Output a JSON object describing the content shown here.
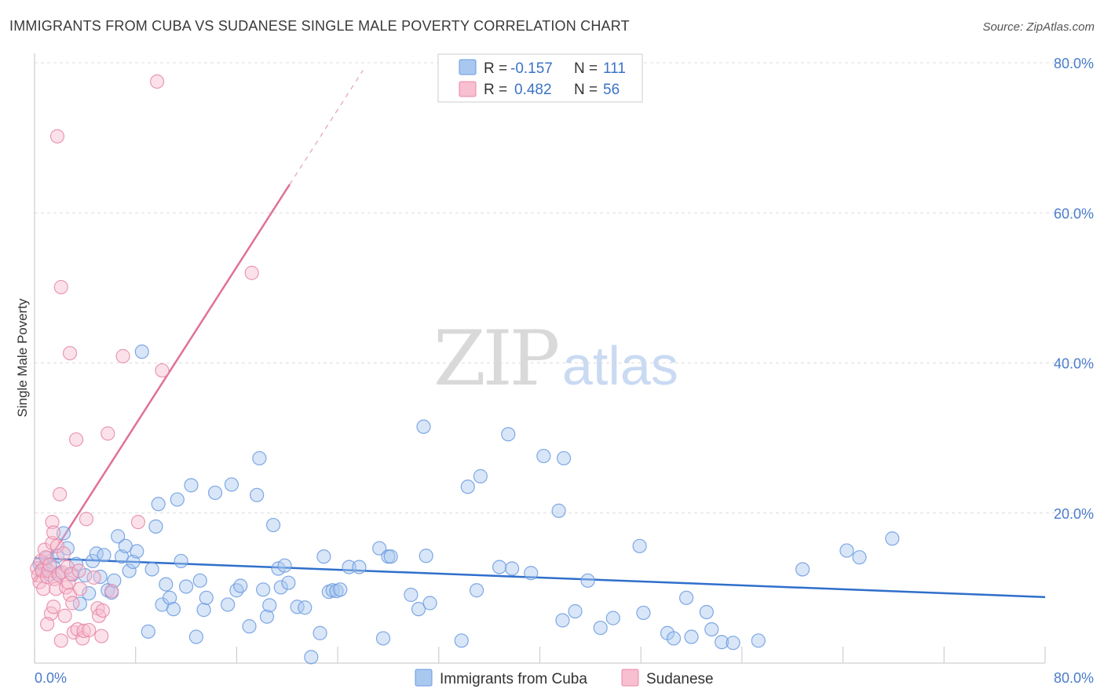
{
  "title": "IMMIGRANTS FROM CUBA VS SUDANESE SINGLE MALE POVERTY CORRELATION CHART",
  "source": "Source: ZipAtlas.com",
  "watermark": {
    "zip": "ZIP",
    "atlas": "atlas"
  },
  "legend": {
    "rows": [
      {
        "r_label": "R =",
        "r_value": "-0.157",
        "n_label": "N =",
        "n_value": "111",
        "color": "#a9c8f0",
        "stroke": "#6b9ae0"
      },
      {
        "r_label": "R =",
        "r_value": "0.482",
        "n_label": "N =",
        "n_value": "56",
        "color": "#f7bfd0",
        "stroke": "#e887a6"
      }
    ]
  },
  "chart_data": {
    "type": "scatter",
    "title": "IMMIGRANTS FROM CUBA VS SUDANESE SINGLE MALE POVERTY CORRELATION CHART",
    "xlabel": "",
    "ylabel": "Single Male Poverty",
    "xlim": [
      0,
      80
    ],
    "ylim": [
      0,
      80
    ],
    "x_tick_labels": [
      {
        "value": 0,
        "label": "0.0%"
      },
      {
        "value": 80,
        "label": "80.0%"
      }
    ],
    "y_tick_labels": [
      {
        "value": 20,
        "label": "20.0%"
      },
      {
        "value": 40,
        "label": "40.0%"
      },
      {
        "value": 60,
        "label": "60.0%"
      },
      {
        "value": 80,
        "label": "80.0%"
      }
    ],
    "grid": true,
    "legend_position": "top-center",
    "series": [
      {
        "name": "Immigrants from Cuba",
        "color": "#6b9ae0",
        "fill": "#a9c8f0",
        "trend": {
          "x": [
            0,
            80
          ],
          "y": [
            14.0,
            8.8
          ],
          "color": "#2f6fcb"
        },
        "points": [
          [
            0.4,
            13.2
          ],
          [
            0.6,
            12.5
          ],
          [
            0.8,
            12.9
          ],
          [
            1.0,
            14.0
          ],
          [
            1.2,
            11.8
          ],
          [
            1.5,
            12.8
          ],
          [
            1.8,
            14.3
          ],
          [
            2.0,
            12.0
          ],
          [
            2.3,
            17.3
          ],
          [
            2.6,
            15.3
          ],
          [
            3.0,
            11.8
          ],
          [
            3.3,
            13.2
          ],
          [
            3.6,
            7.9
          ],
          [
            4.0,
            11.7
          ],
          [
            4.3,
            9.3
          ],
          [
            4.6,
            13.6
          ],
          [
            4.9,
            14.6
          ],
          [
            5.2,
            11.5
          ],
          [
            5.5,
            14.4
          ],
          [
            5.8,
            9.7
          ],
          [
            6.1,
            9.4
          ],
          [
            6.3,
            11.0
          ],
          [
            6.6,
            16.9
          ],
          [
            6.9,
            14.2
          ],
          [
            7.2,
            15.6
          ],
          [
            7.5,
            12.3
          ],
          [
            7.8,
            13.5
          ],
          [
            8.1,
            14.9
          ],
          [
            8.5,
            41.5
          ],
          [
            9.0,
            4.2
          ],
          [
            9.3,
            12.5
          ],
          [
            9.6,
            18.2
          ],
          [
            9.8,
            21.2
          ],
          [
            10.1,
            7.8
          ],
          [
            10.4,
            10.5
          ],
          [
            10.7,
            8.7
          ],
          [
            11.0,
            7.2
          ],
          [
            11.3,
            21.8
          ],
          [
            11.6,
            13.6
          ],
          [
            12.0,
            10.2
          ],
          [
            12.4,
            23.7
          ],
          [
            12.8,
            3.5
          ],
          [
            13.1,
            11.0
          ],
          [
            13.4,
            7.1
          ],
          [
            13.6,
            8.7
          ],
          [
            14.3,
            22.7
          ],
          [
            15.3,
            7.8
          ],
          [
            15.6,
            23.8
          ],
          [
            16.0,
            9.7
          ],
          [
            16.3,
            10.3
          ],
          [
            17.0,
            4.9
          ],
          [
            17.6,
            22.4
          ],
          [
            17.8,
            27.3
          ],
          [
            18.1,
            9.8
          ],
          [
            18.4,
            6.2
          ],
          [
            18.6,
            7.7
          ],
          [
            18.9,
            18.4
          ],
          [
            19.3,
            12.6
          ],
          [
            19.5,
            10.1
          ],
          [
            19.8,
            13.0
          ],
          [
            20.1,
            10.7
          ],
          [
            20.8,
            7.5
          ],
          [
            21.4,
            7.4
          ],
          [
            21.9,
            0.8
          ],
          [
            22.6,
            4.0
          ],
          [
            22.9,
            14.2
          ],
          [
            23.3,
            9.5
          ],
          [
            23.6,
            9.7
          ],
          [
            23.9,
            9.6
          ],
          [
            24.2,
            9.8
          ],
          [
            24.9,
            12.8
          ],
          [
            25.7,
            12.8
          ],
          [
            27.3,
            15.3
          ],
          [
            27.6,
            3.3
          ],
          [
            28.0,
            14.2
          ],
          [
            28.2,
            14.2
          ],
          [
            29.8,
            9.1
          ],
          [
            30.4,
            7.2
          ],
          [
            30.8,
            31.5
          ],
          [
            31.0,
            14.3
          ],
          [
            31.3,
            8.0
          ],
          [
            33.8,
            3.0
          ],
          [
            34.3,
            23.5
          ],
          [
            35.0,
            9.7
          ],
          [
            35.3,
            24.9
          ],
          [
            36.8,
            12.8
          ],
          [
            37.5,
            30.5
          ],
          [
            37.8,
            12.6
          ],
          [
            39.3,
            12.0
          ],
          [
            40.3,
            27.6
          ],
          [
            41.5,
            20.3
          ],
          [
            41.8,
            5.7
          ],
          [
            41.9,
            27.3
          ],
          [
            42.8,
            6.9
          ],
          [
            43.8,
            11.0
          ],
          [
            44.8,
            4.7
          ],
          [
            45.8,
            6.0
          ],
          [
            47.9,
            15.6
          ],
          [
            48.2,
            6.7
          ],
          [
            50.1,
            4.0
          ],
          [
            50.6,
            3.3
          ],
          [
            51.6,
            8.7
          ],
          [
            52.0,
            3.5
          ],
          [
            53.2,
            6.8
          ],
          [
            53.6,
            4.5
          ],
          [
            54.4,
            2.8
          ],
          [
            55.3,
            2.7
          ],
          [
            57.3,
            3.0
          ],
          [
            60.8,
            12.5
          ],
          [
            64.3,
            15.0
          ],
          [
            65.3,
            14.1
          ],
          [
            67.9,
            16.6
          ]
        ]
      },
      {
        "name": "Sudanese",
        "color": "#e887a6",
        "fill": "#f7bfd0",
        "trend": {
          "x": [
            0,
            20.2
          ],
          "y": [
            10.8,
            63.8
          ],
          "x_dashed_end": 26.0,
          "y_dashed_end": 79.0,
          "color": "#e0709a"
        },
        "points": [
          [
            0.2,
            12.6
          ],
          [
            0.3,
            11.7
          ],
          [
            0.4,
            10.8
          ],
          [
            0.5,
            13.6
          ],
          [
            0.6,
            12.3
          ],
          [
            0.7,
            9.9
          ],
          [
            0.8,
            15.1
          ],
          [
            0.9,
            14.1
          ],
          [
            1.0,
            11.5
          ],
          [
            1.1,
            12.3
          ],
          [
            1.2,
            13.1
          ],
          [
            1.3,
            6.6
          ],
          [
            1.4,
            16.0
          ],
          [
            1.4,
            18.8
          ],
          [
            1.5,
            17.4
          ],
          [
            1.6,
            11.2
          ],
          [
            1.7,
            9.9
          ],
          [
            1.8,
            15.6
          ],
          [
            1.9,
            11.8
          ],
          [
            2.0,
            22.5
          ],
          [
            2.1,
            3.0
          ],
          [
            2.2,
            12.1
          ],
          [
            2.4,
            6.3
          ],
          [
            2.5,
            10.1
          ],
          [
            2.6,
            12.8
          ],
          [
            2.7,
            10.7
          ],
          [
            2.8,
            9.1
          ],
          [
            2.9,
            11.9
          ],
          [
            3.0,
            8.0
          ],
          [
            3.1,
            4.1
          ],
          [
            3.3,
            29.8
          ],
          [
            3.4,
            4.5
          ],
          [
            3.6,
            9.9
          ],
          [
            3.8,
            3.3
          ],
          [
            3.9,
            4.3
          ],
          [
            4.1,
            19.2
          ],
          [
            4.3,
            4.4
          ],
          [
            4.7,
            11.4
          ],
          [
            5.0,
            7.3
          ],
          [
            5.1,
            6.3
          ],
          [
            5.3,
            3.6
          ],
          [
            5.4,
            7.0
          ],
          [
            5.8,
            30.6
          ],
          [
            6.1,
            9.6
          ],
          [
            1.8,
            70.2
          ],
          [
            2.1,
            50.1
          ],
          [
            2.8,
            41.3
          ],
          [
            7.0,
            40.9
          ],
          [
            9.7,
            77.5
          ],
          [
            8.2,
            18.8
          ],
          [
            10.1,
            39.0
          ],
          [
            17.2,
            52.0
          ],
          [
            1.0,
            5.2
          ],
          [
            1.5,
            7.5
          ],
          [
            3.5,
            12.3
          ],
          [
            2.3,
            14.6
          ]
        ]
      }
    ]
  }
}
